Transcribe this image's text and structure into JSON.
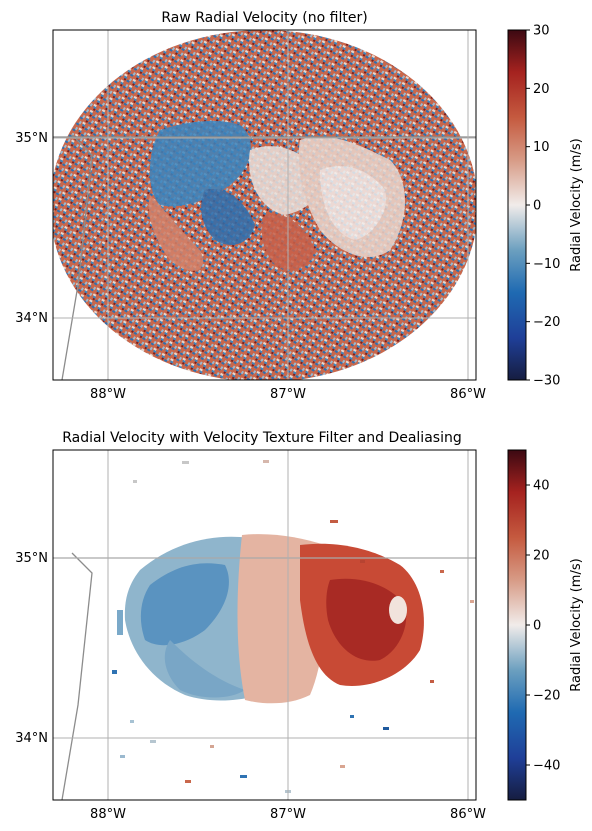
{
  "chart_data": [
    {
      "type": "heatmap",
      "title": "Raw Radial Velocity (no filter)",
      "x_ticks": [
        {
          "value": -88,
          "label": "88°W"
        },
        {
          "value": -87,
          "label": "87°W"
        },
        {
          "value": -86,
          "label": "86°W"
        }
      ],
      "y_ticks": [
        {
          "value": 35,
          "label": "35°N"
        },
        {
          "value": 34,
          "label": "34°N"
        }
      ],
      "xlim": [
        -88.3,
        -85.95
      ],
      "ylim": [
        33.65,
        35.6
      ],
      "colorbar": {
        "label": "Radial Velocity (m/s)",
        "range": [
          -30,
          30
        ],
        "ticks": [
          {
            "value": 30,
            "label": "30"
          },
          {
            "value": 20,
            "label": "20"
          },
          {
            "value": 10,
            "label": "10"
          },
          {
            "value": 0,
            "label": "0"
          },
          {
            "value": -10,
            "label": "−10"
          },
          {
            "value": -20,
            "label": "−20"
          },
          {
            "value": -30,
            "label": "−30"
          }
        ],
        "colormap": "balance"
      },
      "grid": true,
      "colors": {
        "negative": "#2f73b3",
        "positive": "#c4553a",
        "neutral": "#eeeeee"
      }
    },
    {
      "type": "heatmap",
      "title": "Radial Velocity with Velocity Texture Filter and Dealiasing",
      "x_ticks": [
        {
          "value": -88,
          "label": "88°W"
        },
        {
          "value": -87,
          "label": "87°W"
        },
        {
          "value": -86,
          "label": "86°W"
        }
      ],
      "y_ticks": [
        {
          "value": 35,
          "label": "35°N"
        },
        {
          "value": 34,
          "label": "34°N"
        }
      ],
      "xlim": [
        -88.3,
        -85.95
      ],
      "ylim": [
        33.65,
        35.6
      ],
      "colorbar": {
        "label": "Radial Velocity (m/s)",
        "range": [
          -50,
          50
        ],
        "ticks": [
          {
            "value": 40,
            "label": "40"
          },
          {
            "value": 20,
            "label": "20"
          },
          {
            "value": 0,
            "label": "0"
          },
          {
            "value": -20,
            "label": "−20"
          },
          {
            "value": -40,
            "label": "−40"
          }
        ],
        "colormap": "balance"
      },
      "grid": true,
      "colors": {
        "negative": "#4a8fbf",
        "positive": "#c0392b",
        "neutral": "#eeeeee"
      }
    }
  ]
}
